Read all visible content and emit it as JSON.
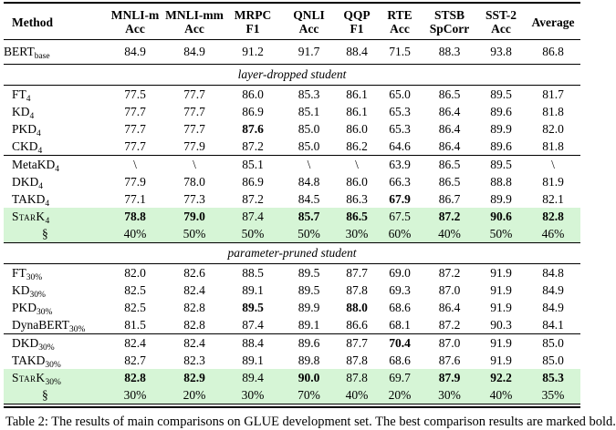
{
  "colors": {
    "highlight": "#d6f5d6",
    "rule": "#000000"
  },
  "caption": "Table 2: The results of main comparisons on GLUE development set. The best comparison results are marked bold.",
  "table": {
    "columns": [
      {
        "l1": "Method",
        "l2": ""
      },
      {
        "l1": "MNLI-m",
        "l2": "Acc"
      },
      {
        "l1": "MNLI-mm",
        "l2": "Acc"
      },
      {
        "l1": "MRPC",
        "l2": "F1"
      },
      {
        "l1": "QNLI",
        "l2": "Acc"
      },
      {
        "l1": "QQP",
        "l2": "F1"
      },
      {
        "l1": "RTE",
        "l2": "Acc"
      },
      {
        "l1": "STSB",
        "l2": "SpCorr"
      },
      {
        "l1": "SST-2",
        "l2": "Acc"
      },
      {
        "l1": "Average",
        "l2": ""
      }
    ],
    "teacher_row": {
      "method": {
        "text": "BERT",
        "sub": "base"
      },
      "values": [
        "84.9",
        "84.9",
        "91.2",
        "91.7",
        "88.4",
        "71.5",
        "88.3",
        "93.8",
        "86.8"
      ]
    },
    "sections": [
      {
        "title": "layer-dropped student",
        "groups": [
          {
            "rows": [
              {
                "method": {
                  "text": "FT",
                  "sub": "4"
                },
                "values": [
                  "77.5",
                  "77.7",
                  "86.0",
                  "85.3",
                  "86.1",
                  "65.0",
                  "86.5",
                  "89.5",
                  "81.7"
                ]
              },
              {
                "method": {
                  "text": "KD",
                  "sub": "4"
                },
                "values": [
                  "77.7",
                  "77.7",
                  "86.9",
                  "85.1",
                  "86.1",
                  "65.3",
                  "86.4",
                  "89.6",
                  "81.8"
                ]
              },
              {
                "method": {
                  "text": "PKD",
                  "sub": "4"
                },
                "values": [
                  "77.7",
                  "77.7",
                  {
                    "v": "87.6",
                    "b": true
                  },
                  "85.0",
                  "86.0",
                  "65.3",
                  "86.4",
                  "89.9",
                  "82.0"
                ]
              },
              {
                "method": {
                  "text": "CKD",
                  "sub": "4"
                },
                "values": [
                  "77.7",
                  "77.9",
                  "87.2",
                  "85.0",
                  "86.2",
                  "64.6",
                  "86.4",
                  "89.6",
                  "81.8"
                ]
              }
            ]
          },
          {
            "rows": [
              {
                "method": {
                  "text": "MetaKD",
                  "sub": "4"
                },
                "values": [
                  "\\",
                  "\\",
                  "85.1",
                  "\\",
                  "\\",
                  "63.9",
                  "86.5",
                  "89.5",
                  "\\"
                ]
              },
              {
                "method": {
                  "text": "DKD",
                  "sub": "4"
                },
                "values": [
                  "77.9",
                  "78.0",
                  "86.9",
                  "84.8",
                  "86.0",
                  "66.3",
                  "86.5",
                  "88.8",
                  "81.9"
                ]
              },
              {
                "method": {
                  "text": "TAKD",
                  "sub": "4"
                },
                "values": [
                  "77.1",
                  "77.3",
                  "87.2",
                  "84.5",
                  "86.3",
                  {
                    "v": "67.9",
                    "b": true
                  },
                  "86.7",
                  "89.9",
                  "82.1"
                ]
              },
              {
                "method": {
                  "text": "StarK",
                  "sub": "4",
                  "sc": true
                },
                "highlight": true,
                "values": [
                  {
                    "v": "78.8",
                    "b": true
                  },
                  {
                    "v": "79.0",
                    "b": true
                  },
                  "87.4",
                  {
                    "v": "85.7",
                    "b": true
                  },
                  {
                    "v": "86.5",
                    "b": true
                  },
                  "67.5",
                  {
                    "v": "87.2",
                    "b": true
                  },
                  {
                    "v": "90.6",
                    "b": true
                  },
                  {
                    "v": "82.8",
                    "b": true
                  }
                ]
              },
              {
                "method": {
                  "text": "§",
                  "indent": true
                },
                "highlight": true,
                "values": [
                  "40%",
                  "50%",
                  "50%",
                  "50%",
                  "30%",
                  "60%",
                  "40%",
                  "50%",
                  "46%"
                ]
              }
            ]
          }
        ]
      },
      {
        "title": "parameter-pruned student",
        "groups": [
          {
            "rows": [
              {
                "method": {
                  "text": "FT",
                  "sub": "30%"
                },
                "values": [
                  "82.0",
                  "82.6",
                  "88.5",
                  "89.5",
                  "87.7",
                  "69.0",
                  "87.2",
                  "91.9",
                  "84.8"
                ]
              },
              {
                "method": {
                  "text": "KD",
                  "sub": "30%"
                },
                "values": [
                  "82.5",
                  "82.4",
                  "89.1",
                  "89.5",
                  "87.8",
                  "69.3",
                  "87.0",
                  "91.9",
                  "84.9"
                ]
              },
              {
                "method": {
                  "text": "PKD",
                  "sub": "30%"
                },
                "values": [
                  "82.5",
                  "82.8",
                  {
                    "v": "89.5",
                    "b": true
                  },
                  "89.9",
                  {
                    "v": "88.0",
                    "b": true
                  },
                  "68.6",
                  "86.4",
                  "91.9",
                  "84.9"
                ]
              },
              {
                "method": {
                  "text": "DynaBERT",
                  "sub": "30%"
                },
                "values": [
                  "81.5",
                  "82.8",
                  "87.4",
                  "89.1",
                  "86.6",
                  "68.1",
                  "87.2",
                  "90.3",
                  "84.1"
                ]
              }
            ]
          },
          {
            "rows": [
              {
                "method": {
                  "text": "DKD",
                  "sub": "30%"
                },
                "values": [
                  "82.4",
                  "82.4",
                  "88.4",
                  "89.6",
                  "87.7",
                  {
                    "v": "70.4",
                    "b": true
                  },
                  "87.0",
                  "91.9",
                  "85.0"
                ]
              },
              {
                "method": {
                  "text": "TAKD",
                  "sub": "30%"
                },
                "values": [
                  "82.7",
                  "82.3",
                  "89.1",
                  "89.8",
                  "87.8",
                  "68.6",
                  "87.6",
                  "91.9",
                  "85.0"
                ]
              },
              {
                "method": {
                  "text": "StarK",
                  "sub": "30%",
                  "sc": true
                },
                "highlight": true,
                "values": [
                  {
                    "v": "82.8",
                    "b": true
                  },
                  {
                    "v": "82.9",
                    "b": true
                  },
                  "89.4",
                  {
                    "v": "90.0",
                    "b": true
                  },
                  "87.8",
                  "69.7",
                  {
                    "v": "87.9",
                    "b": true
                  },
                  {
                    "v": "92.2",
                    "b": true
                  },
                  {
                    "v": "85.3",
                    "b": true
                  }
                ]
              },
              {
                "method": {
                  "text": "§",
                  "indent": true
                },
                "highlight": true,
                "values": [
                  "30%",
                  "20%",
                  "30%",
                  "70%",
                  "40%",
                  "20%",
                  "30%",
                  "40%",
                  "35%"
                ]
              }
            ]
          }
        ]
      }
    ]
  }
}
